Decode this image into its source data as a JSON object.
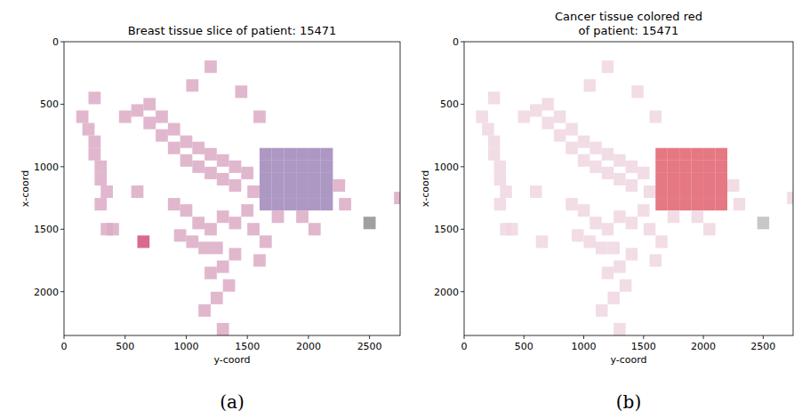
{
  "chart_data": [
    {
      "type": "patches",
      "title": "Breast tissue slice of patient: 15471",
      "x_label": "y-coord",
      "y_label": "x-coord",
      "caption": "(a)",
      "xlim": [
        0,
        2750
      ],
      "ylim": [
        2350,
        0
      ],
      "xticks": [
        0,
        500,
        1000,
        1500,
        2000,
        2500
      ],
      "yticks": [
        0,
        500,
        1000,
        1500,
        2000
      ],
      "x": [
        100,
        150,
        200,
        200,
        250,
        250,
        300,
        250,
        300,
        200,
        450,
        550,
        650,
        650,
        750,
        750,
        850,
        850,
        950,
        950,
        1050,
        1050,
        1150,
        1150,
        1250,
        1250,
        1350,
        1350,
        1450,
        1500,
        1000,
        1150,
        1400,
        1550,
        1600,
        1700,
        1800,
        1900,
        2000,
        2100,
        1600,
        1700,
        1800,
        1900,
        2000,
        2100,
        1600,
        1700,
        1800,
        1900,
        2000,
        2100,
        1600,
        1700,
        1800,
        1900,
        2000,
        2100,
        1600,
        1700,
        1800,
        1900,
        2000,
        2100,
        2200,
        2250,
        1700,
        1900,
        2000,
        2450,
        2700,
        850,
        950,
        1050,
        1150,
        1250,
        1350,
        1450,
        1000,
        1100,
        1200,
        1250,
        1150,
        1300,
        1200,
        1100,
        1350,
        900,
        1500,
        1600,
        1550,
        1250,
        600,
        350,
        550
      ],
      "y": [
        550,
        650,
        750,
        850,
        950,
        1050,
        1150,
        1250,
        1450,
        400,
        550,
        500,
        450,
        600,
        550,
        700,
        650,
        800,
        750,
        900,
        800,
        950,
        850,
        1000,
        900,
        1050,
        950,
        1100,
        1000,
        1150,
        300,
        150,
        350,
        550,
        850,
        850,
        850,
        850,
        850,
        850,
        950,
        950,
        950,
        950,
        950,
        950,
        1050,
        1050,
        1050,
        1050,
        1050,
        1050,
        1150,
        1150,
        1150,
        1150,
        1150,
        1150,
        1250,
        1250,
        1250,
        1250,
        1250,
        1250,
        1100,
        1250,
        1350,
        1350,
        1450,
        1400,
        1200,
        1250,
        1300,
        1400,
        1450,
        1350,
        1400,
        1300,
        1550,
        1600,
        1600,
        1750,
        1800,
        1900,
        2000,
        2100,
        1650,
        1500,
        1450,
        1550,
        1700,
        2250,
        1550,
        1450,
        1150
      ],
      "colors": [
        "#dcaac6",
        "#dcaac6",
        "#dcaac6",
        "#dcaac6",
        "#dcaac6",
        "#dcaac6",
        "#dcaac6",
        "#dcaac6",
        "#dcaac6",
        "#dcaac6",
        "#dcaac6",
        "#dcaac6",
        "#dcaac6",
        "#dcaac6",
        "#dcaac6",
        "#dcaac6",
        "#dcaac6",
        "#dcaac6",
        "#dcaac6",
        "#dcaac6",
        "#dcaac6",
        "#dcaac6",
        "#dcaac6",
        "#dcaac6",
        "#dcaac6",
        "#dcaac6",
        "#dcaac6",
        "#dcaac6",
        "#dcaac6",
        "#dcaac6",
        "#dcaac6",
        "#dcaac6",
        "#dcaac6",
        "#dcaac6",
        "#9f86b8",
        "#9f86b8",
        "#9f86b8",
        "#9f86b8",
        "#9f86b8",
        "#9f86b8",
        "#9f86b8",
        "#9f86b8",
        "#9f86b8",
        "#9f86b8",
        "#9f86b8",
        "#9f86b8",
        "#9f86b8",
        "#9f86b8",
        "#9f86b8",
        "#9f86b8",
        "#9f86b8",
        "#9f86b8",
        "#9f86b8",
        "#9f86b8",
        "#9f86b8",
        "#9f86b8",
        "#9f86b8",
        "#9f86b8",
        "#9f86b8",
        "#9f86b8",
        "#9f86b8",
        "#9f86b8",
        "#9f86b8",
        "#9f86b8",
        "#dcaac6",
        "#dcaac6",
        "#dcaac6",
        "#dcaac6",
        "#dcaac6",
        "#8f8f8f",
        "#dcaac6",
        "#dcaac6",
        "#dcaac6",
        "#dcaac6",
        "#dcaac6",
        "#dcaac6",
        "#dcaac6",
        "#dcaac6",
        "#dcaac6",
        "#dcaac6",
        "#dcaac6",
        "#dcaac6",
        "#dcaac6",
        "#dcaac6",
        "#dcaac6",
        "#dcaac6",
        "#dcaac6",
        "#dcaac6",
        "#dcaac6",
        "#dcaac6",
        "#dcaac6",
        "#dcaac6",
        "#d0507a",
        "#dcaac6",
        "#dcaac6"
      ]
    },
    {
      "type": "patches",
      "title": [
        "Cancer tissue colored red",
        "of patient: 15471"
      ],
      "x_label": "y-coord",
      "y_label": "x-coord",
      "caption": "(b)",
      "xlim": [
        0,
        2750
      ],
      "ylim": [
        2350,
        0
      ],
      "xticks": [
        0,
        500,
        1000,
        1500,
        2000,
        2500
      ],
      "yticks": [
        0,
        500,
        1000,
        1500,
        2000
      ],
      "x": [
        100,
        150,
        200,
        200,
        250,
        250,
        300,
        250,
        300,
        200,
        450,
        550,
        650,
        650,
        750,
        750,
        850,
        850,
        950,
        950,
        1050,
        1050,
        1150,
        1150,
        1250,
        1250,
        1350,
        1350,
        1450,
        1500,
        1000,
        1150,
        1400,
        1550,
        1600,
        1700,
        1800,
        1900,
        2000,
        2100,
        1600,
        1700,
        1800,
        1900,
        2000,
        2100,
        1600,
        1700,
        1800,
        1900,
        2000,
        2100,
        1600,
        1700,
        1800,
        1900,
        2000,
        2100,
        1600,
        1700,
        1800,
        1900,
        2000,
        2100,
        2200,
        2250,
        1700,
        1900,
        2000,
        2450,
        2700,
        850,
        950,
        1050,
        1150,
        1250,
        1350,
        1450,
        1000,
        1100,
        1200,
        1250,
        1150,
        1300,
        1200,
        1100,
        1350,
        900,
        1500,
        1600,
        1550,
        1250,
        600,
        350,
        550
      ],
      "y": [
        550,
        650,
        750,
        850,
        950,
        1050,
        1150,
        1250,
        1450,
        400,
        550,
        500,
        450,
        600,
        550,
        700,
        650,
        800,
        750,
        900,
        800,
        950,
        850,
        1000,
        900,
        1050,
        950,
        1100,
        1000,
        1150,
        300,
        150,
        350,
        550,
        850,
        850,
        850,
        850,
        850,
        850,
        950,
        950,
        950,
        950,
        950,
        950,
        1050,
        1050,
        1050,
        1050,
        1050,
        1050,
        1150,
        1150,
        1150,
        1150,
        1150,
        1150,
        1250,
        1250,
        1250,
        1250,
        1250,
        1250,
        1100,
        1250,
        1350,
        1350,
        1450,
        1400,
        1200,
        1250,
        1300,
        1400,
        1450,
        1350,
        1400,
        1300,
        1550,
        1600,
        1600,
        1750,
        1800,
        1900,
        2000,
        2100,
        1650,
        1500,
        1450,
        1550,
        1700,
        2250,
        1550,
        1450,
        1150
      ],
      "colors": [
        "#f0d6e2",
        "#f0d6e2",
        "#f0d6e2",
        "#f0d6e2",
        "#f0d6e2",
        "#f0d6e2",
        "#f0d6e2",
        "#f0d6e2",
        "#f0d6e2",
        "#f0d6e2",
        "#f0d6e2",
        "#f0d6e2",
        "#f0d6e2",
        "#f0d6e2",
        "#f0d6e2",
        "#f0d6e2",
        "#f0d6e2",
        "#f0d6e2",
        "#f0d6e2",
        "#f0d6e2",
        "#f0d6e2",
        "#f0d6e2",
        "#f0d6e2",
        "#f0d6e2",
        "#f0d6e2",
        "#f0d6e2",
        "#f0d6e2",
        "#f0d6e2",
        "#f0d6e2",
        "#f0d6e2",
        "#f0d6e2",
        "#f0d6e2",
        "#f0d6e2",
        "#f0d6e2",
        "#e0606c",
        "#e0606c",
        "#e0606c",
        "#e0606c",
        "#e0606c",
        "#e0606c",
        "#e0606c",
        "#e0606c",
        "#e0606c",
        "#e0606c",
        "#e0606c",
        "#e0606c",
        "#e0606c",
        "#e0606c",
        "#e0606c",
        "#e0606c",
        "#e0606c",
        "#e0606c",
        "#e0606c",
        "#e0606c",
        "#e0606c",
        "#e0606c",
        "#e0606c",
        "#e0606c",
        "#e0606c",
        "#e0606c",
        "#e0606c",
        "#e0606c",
        "#e0606c",
        "#e0606c",
        "#f0d6e2",
        "#f0d6e2",
        "#f0d6e2",
        "#f0d6e2",
        "#f0d6e2",
        "#bdbdbd",
        "#f0d6e2",
        "#f0d6e2",
        "#f0d6e2",
        "#f0d6e2",
        "#f0d6e2",
        "#f0d6e2",
        "#f0d6e2",
        "#f0d6e2",
        "#f0d6e2",
        "#f0d6e2",
        "#f0d6e2",
        "#f0d6e2",
        "#f0d6e2",
        "#f0d6e2",
        "#f0d6e2",
        "#f0d6e2",
        "#f0d6e2",
        "#f0d6e2",
        "#f0d6e2",
        "#f0d6e2",
        "#f0d6e2",
        "#f0d6e2",
        "#f0d6e2",
        "#f0d6e2",
        "#f0d6e2"
      ]
    }
  ]
}
